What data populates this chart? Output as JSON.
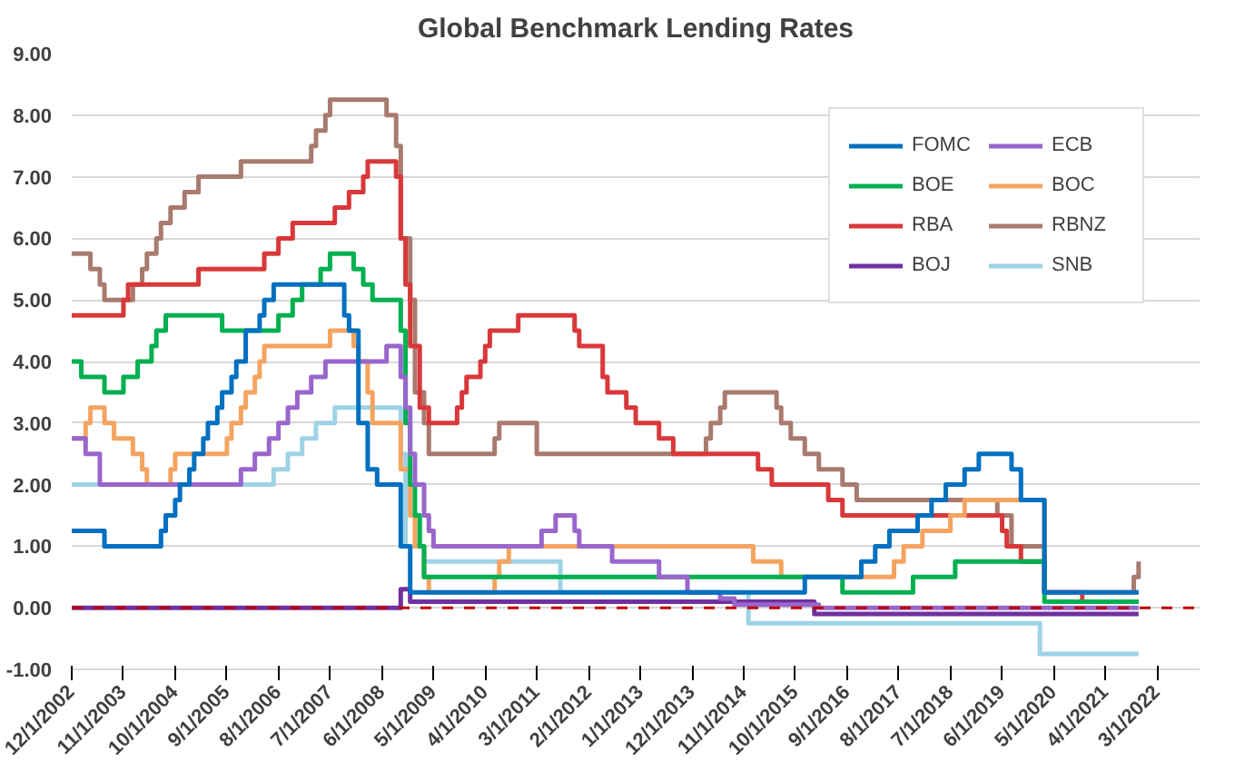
{
  "chart_data": {
    "type": "step",
    "title": "Global Benchmark Lending Rates",
    "xlim": [
      "2002-12-01",
      "2022-12-01"
    ],
    "xticks": [
      {
        "value": "2002-12-01",
        "label": "12/1/2002"
      },
      {
        "value": "2003-11-01",
        "label": "11/1/2003"
      },
      {
        "value": "2004-10-01",
        "label": "10/1/2004"
      },
      {
        "value": "2005-09-01",
        "label": "9/1/2005"
      },
      {
        "value": "2006-08-01",
        "label": "8/1/2006"
      },
      {
        "value": "2007-07-01",
        "label": "7/1/2007"
      },
      {
        "value": "2008-06-01",
        "label": "6/1/2008"
      },
      {
        "value": "2009-05-01",
        "label": "5/1/2009"
      },
      {
        "value": "2010-04-01",
        "label": "4/1/2010"
      },
      {
        "value": "2011-03-01",
        "label": "3/1/2011"
      },
      {
        "value": "2012-02-01",
        "label": "2/1/2012"
      },
      {
        "value": "2013-01-01",
        "label": "1/1/2013"
      },
      {
        "value": "2013-12-01",
        "label": "12/1/2013"
      },
      {
        "value": "2014-11-01",
        "label": "11/1/2014"
      },
      {
        "value": "2015-10-01",
        "label": "10/1/2015"
      },
      {
        "value": "2016-09-01",
        "label": "9/1/2016"
      },
      {
        "value": "2017-08-01",
        "label": "8/1/2017"
      },
      {
        "value": "2018-07-01",
        "label": "7/1/2018"
      },
      {
        "value": "2019-06-01",
        "label": "6/1/2019"
      },
      {
        "value": "2020-05-01",
        "label": "5/1/2020"
      },
      {
        "value": "2021-04-01",
        "label": "4/1/2021"
      },
      {
        "value": "2022-03-01",
        "label": "3/1/2022"
      }
    ],
    "ylim": [
      -1,
      9
    ],
    "yticks": [
      {
        "value": -1,
        "label": "-1.00"
      },
      {
        "value": 0,
        "label": "0.00"
      },
      {
        "value": 1,
        "label": "1.00"
      },
      {
        "value": 2,
        "label": "2.00"
      },
      {
        "value": 3,
        "label": "3.00"
      },
      {
        "value": 4,
        "label": "4.00"
      },
      {
        "value": 5,
        "label": "5.00"
      },
      {
        "value": 6,
        "label": "6.00"
      },
      {
        "value": 7,
        "label": "7.00"
      },
      {
        "value": 8,
        "label": "8.00"
      },
      {
        "value": 9,
        "label": "9.00"
      }
    ],
    "grid": "y",
    "legend": "top right",
    "line_style": "solid",
    "ref_lines": [
      {
        "axis": "y",
        "value": 0,
        "label": null,
        "color": "#c00000",
        "line_style": "dashed"
      }
    ],
    "series": [
      {
        "name": "FOMC",
        "color": "#0070c0",
        "x": [
          "2002-12",
          "2003-07",
          "2004-07",
          "2004-08",
          "2004-10",
          "2004-11",
          "2005-01",
          "2005-02",
          "2005-04",
          "2005-05",
          "2005-07",
          "2005-08",
          "2005-10",
          "2005-11",
          "2006-01",
          "2006-04",
          "2006-05",
          "2006-07",
          "2007-10",
          "2007-11",
          "2008-01",
          "2008-03",
          "2008-05",
          "2008-10",
          "2008-12",
          "2015-12",
          "2016-12",
          "2017-03",
          "2017-06",
          "2017-12",
          "2018-03",
          "2018-06",
          "2018-10",
          "2019-01",
          "2019-08",
          "2019-10",
          "2020-03",
          "2021-11"
        ],
        "values": [
          1.25,
          1.0,
          1.25,
          1.5,
          1.75,
          2.0,
          2.25,
          2.5,
          2.75,
          3.0,
          3.25,
          3.5,
          3.75,
          4.0,
          4.5,
          4.75,
          5.0,
          5.25,
          4.75,
          4.5,
          3.0,
          2.25,
          2.0,
          1.0,
          0.25,
          0.5,
          0.75,
          1.0,
          1.25,
          1.5,
          1.75,
          2.0,
          2.25,
          2.5,
          2.25,
          1.75,
          0.25,
          0.25
        ]
      },
      {
        "name": "ECB",
        "color": "#9966cc",
        "x": [
          "2002-12",
          "2003-03",
          "2003-06",
          "2005-12",
          "2006-03",
          "2006-06",
          "2006-08",
          "2006-10",
          "2006-12",
          "2007-03",
          "2007-06",
          "2008-07",
          "2008-10",
          "2008-11",
          "2008-12",
          "2009-01",
          "2009-03",
          "2009-04",
          "2009-05",
          "2011-04",
          "2011-07",
          "2011-11",
          "2011-12",
          "2012-07",
          "2013-05",
          "2013-11",
          "2014-06",
          "2014-09",
          "2016-03",
          "2021-11"
        ],
        "values": [
          2.75,
          2.5,
          2.0,
          2.25,
          2.5,
          2.75,
          3.0,
          3.25,
          3.5,
          3.75,
          4.0,
          4.25,
          3.75,
          3.25,
          2.5,
          2.0,
          1.5,
          1.25,
          1.0,
          1.25,
          1.5,
          1.25,
          1.0,
          0.75,
          0.5,
          0.25,
          0.15,
          0.05,
          0.0,
          0.0
        ]
      },
      {
        "name": "BOE",
        "color": "#00b050",
        "x": [
          "2002-12",
          "2003-02",
          "2003-07",
          "2003-11",
          "2004-02",
          "2004-05",
          "2004-06",
          "2004-08",
          "2005-08",
          "2006-08",
          "2006-11",
          "2007-01",
          "2007-05",
          "2007-07",
          "2007-12",
          "2008-02",
          "2008-04",
          "2008-10",
          "2008-11",
          "2008-12",
          "2009-01",
          "2009-02",
          "2009-03",
          "2016-08",
          "2017-11",
          "2018-08",
          "2020-03",
          "2021-11"
        ],
        "values": [
          4.0,
          3.75,
          3.5,
          3.75,
          4.0,
          4.25,
          4.5,
          4.75,
          4.5,
          4.75,
          5.0,
          5.25,
          5.5,
          5.75,
          5.5,
          5.25,
          5.0,
          4.5,
          3.0,
          2.0,
          1.5,
          1.0,
          0.5,
          0.25,
          0.5,
          0.75,
          0.1,
          0.1
        ]
      },
      {
        "name": "BOC",
        "color": "#f4a460",
        "x": [
          "2002-12",
          "2003-03",
          "2003-04",
          "2003-07",
          "2003-09",
          "2004-01",
          "2004-03",
          "2004-04",
          "2004-09",
          "2004-10",
          "2005-09",
          "2005-10",
          "2005-12",
          "2006-01",
          "2006-03",
          "2006-04",
          "2006-05",
          "2007-07",
          "2007-12",
          "2008-01",
          "2008-03",
          "2008-04",
          "2008-10",
          "2008-12",
          "2009-01",
          "2009-03",
          "2009-04",
          "2010-06",
          "2010-07",
          "2010-09",
          "2015-01",
          "2015-07",
          "2017-07",
          "2017-09",
          "2018-01",
          "2018-07",
          "2018-10",
          "2020-03",
          "2021-11"
        ],
        "values": [
          2.75,
          3.0,
          3.25,
          3.0,
          2.75,
          2.5,
          2.25,
          2.0,
          2.25,
          2.5,
          2.75,
          3.0,
          3.25,
          3.5,
          3.75,
          4.0,
          4.25,
          4.5,
          4.25,
          4.0,
          3.5,
          3.0,
          2.25,
          1.5,
          1.0,
          0.5,
          0.25,
          0.5,
          0.75,
          1.0,
          0.75,
          0.5,
          0.75,
          1.0,
          1.25,
          1.5,
          1.75,
          0.25,
          0.25
        ]
      },
      {
        "name": "RBA",
        "color": "#d9383a",
        "x": [
          "2002-12",
          "2003-11",
          "2003-12",
          "2005-03",
          "2006-05",
          "2006-08",
          "2006-11",
          "2007-08",
          "2007-11",
          "2008-02",
          "2008-03",
          "2008-09",
          "2008-10",
          "2008-11",
          "2008-12",
          "2009-02",
          "2009-04",
          "2009-10",
          "2009-11",
          "2009-12",
          "2010-03",
          "2010-04",
          "2010-05",
          "2010-11",
          "2011-11",
          "2011-12",
          "2012-05",
          "2012-06",
          "2012-10",
          "2012-12",
          "2013-05",
          "2013-08",
          "2015-02",
          "2015-05",
          "2016-05",
          "2016-08",
          "2019-06",
          "2019-07",
          "2019-10",
          "2020-03",
          "2020-11",
          "2021-11"
        ],
        "values": [
          4.75,
          5.0,
          5.25,
          5.5,
          5.75,
          6.0,
          6.25,
          6.5,
          6.75,
          7.0,
          7.25,
          7.0,
          6.0,
          5.25,
          4.25,
          3.25,
          3.0,
          3.25,
          3.5,
          3.75,
          4.0,
          4.25,
          4.5,
          4.75,
          4.5,
          4.25,
          3.75,
          3.5,
          3.25,
          3.0,
          2.75,
          2.5,
          2.25,
          2.0,
          1.75,
          1.5,
          1.25,
          1.0,
          0.75,
          0.25,
          0.1,
          0.1
        ]
      },
      {
        "name": "RBNZ",
        "color": "#a97a6e",
        "x": [
          "2002-12",
          "2003-04",
          "2003-06",
          "2003-07",
          "2004-01",
          "2004-03",
          "2004-04",
          "2004-06",
          "2004-07",
          "2004-09",
          "2004-12",
          "2005-03",
          "2005-12",
          "2007-03",
          "2007-04",
          "2007-06",
          "2007-07",
          "2008-07",
          "2008-09",
          "2008-10",
          "2008-12",
          "2009-01",
          "2009-03",
          "2009-04",
          "2010-06",
          "2010-07",
          "2011-03",
          "2014-03",
          "2014-04",
          "2014-06",
          "2014-07",
          "2015-06",
          "2015-07",
          "2015-09",
          "2015-12",
          "2016-03",
          "2016-08",
          "2016-11",
          "2019-05",
          "2019-08",
          "2020-03",
          "2021-10",
          "2021-11"
        ],
        "values": [
          5.75,
          5.5,
          5.25,
          5.0,
          5.25,
          5.5,
          5.75,
          6.0,
          6.25,
          6.5,
          6.75,
          7.0,
          7.25,
          7.5,
          7.75,
          8.0,
          8.25,
          8.0,
          7.5,
          6.0,
          5.0,
          3.5,
          3.0,
          2.5,
          2.75,
          3.0,
          2.5,
          2.75,
          3.0,
          3.25,
          3.5,
          3.25,
          3.0,
          2.75,
          2.5,
          2.25,
          2.0,
          1.75,
          1.5,
          1.0,
          0.25,
          0.5,
          0.75
        ]
      },
      {
        "name": "BOJ",
        "color": "#7030a0",
        "x": [
          "2002-12",
          "2008-10",
          "2008-12",
          "2016-02",
          "2021-11"
        ],
        "values": [
          0.0,
          0.3,
          0.1,
          -0.1,
          -0.1
        ]
      },
      {
        "name": "SNB",
        "color": "#9dd3e5",
        "x": [
          "2002-12",
          "2006-07",
          "2006-10",
          "2007-01",
          "2007-04",
          "2007-08",
          "2008-10",
          "2008-11",
          "2009-03",
          "2011-08",
          "2014-12",
          "2020-02",
          "2021-11"
        ],
        "values": [
          2.0,
          2.25,
          2.5,
          2.75,
          3.0,
          3.25,
          2.5,
          1.0,
          0.75,
          0.25,
          -0.25,
          -0.75,
          -0.75
        ]
      }
    ]
  }
}
